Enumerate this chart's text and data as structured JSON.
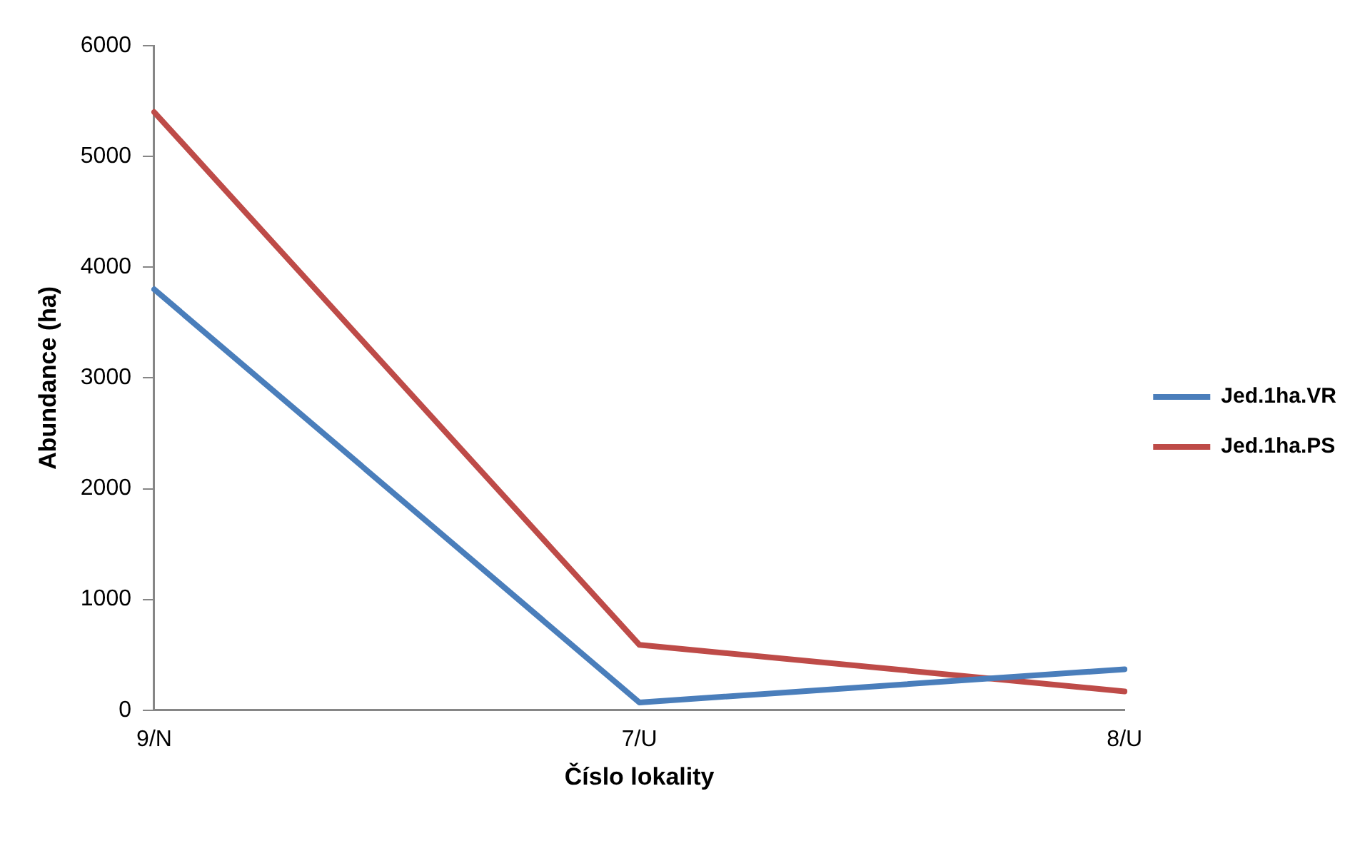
{
  "chart_data": {
    "type": "line",
    "xlabel": "Číslo lokality",
    "ylabel": "Abundance (ha)",
    "categories": [
      "9/N",
      "7/U",
      "8/U"
    ],
    "series": [
      {
        "name": "Jed.1ha.VR",
        "color": "#4a7ebb",
        "values": [
          3800,
          70,
          370
        ]
      },
      {
        "name": "Jed.1ha.PS",
        "color": "#be4b48",
        "values": [
          5400,
          590,
          170
        ]
      }
    ],
    "ylim": [
      0,
      6000
    ],
    "yticks": [
      0,
      1000,
      2000,
      3000,
      4000,
      5000,
      6000
    ],
    "grid": false,
    "legend": "right",
    "marker": "none",
    "line_style": "solid"
  }
}
